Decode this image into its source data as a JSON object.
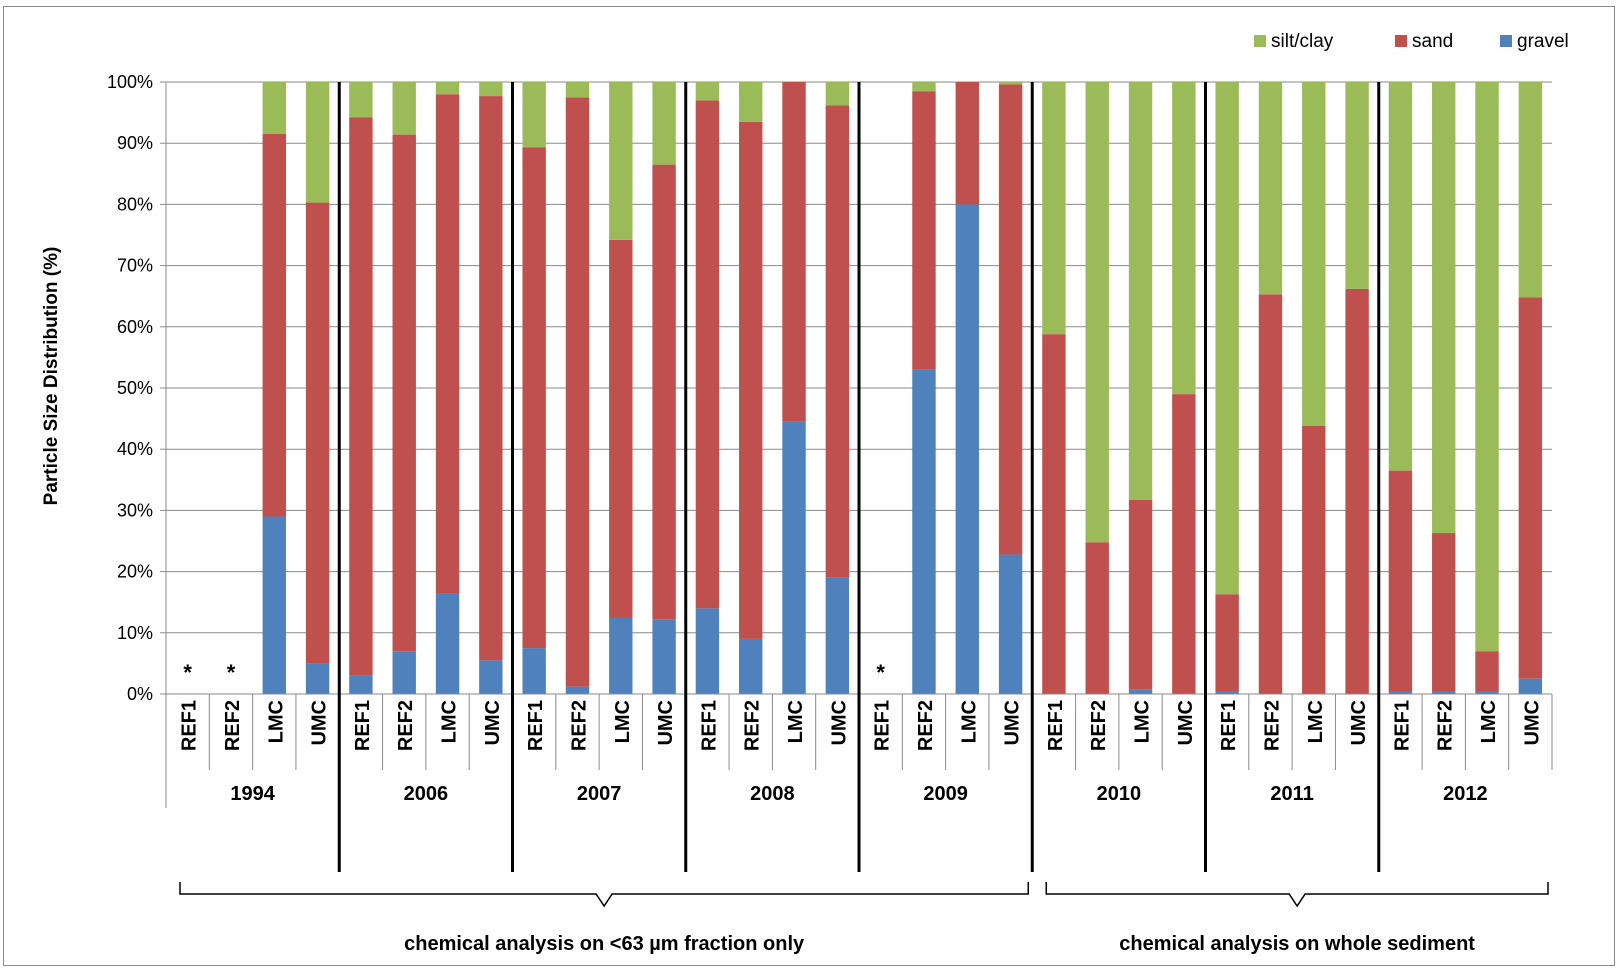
{
  "chart_data": {
    "type": "bar",
    "stacked": true,
    "ylabel": "Particle Size Distribution (%)",
    "xlabel": "",
    "ylim": [
      0,
      100
    ],
    "y_ticks": [
      "0%",
      "10%",
      "20%",
      "30%",
      "40%",
      "50%",
      "60%",
      "70%",
      "80%",
      "90%",
      "100%"
    ],
    "grid": true,
    "legend_position": "top-right",
    "groups": [
      {
        "label": "1994",
        "sites": [
          "REF1",
          "REF2",
          "LMC",
          "UMC"
        ]
      },
      {
        "label": "2006",
        "sites": [
          "REF1",
          "REF2",
          "LMC",
          "UMC"
        ]
      },
      {
        "label": "2007",
        "sites": [
          "REF1",
          "REF2",
          "LMC",
          "UMC"
        ]
      },
      {
        "label": "2008",
        "sites": [
          "REF1",
          "REF2",
          "LMC",
          "UMC"
        ]
      },
      {
        "label": "2009",
        "sites": [
          "REF1",
          "REF2",
          "LMC",
          "UMC"
        ]
      },
      {
        "label": "2010",
        "sites": [
          "REF1",
          "REF2",
          "LMC",
          "UMC"
        ]
      },
      {
        "label": "2011",
        "sites": [
          "REF1",
          "REF2",
          "LMC",
          "UMC"
        ]
      },
      {
        "label": "2012",
        "sites": [
          "REF1",
          "REF2",
          "LMC",
          "UMC"
        ]
      }
    ],
    "series": [
      {
        "name": "gravel",
        "color": "#4f81bd",
        "values": [
          null,
          null,
          29,
          5,
          3,
          7,
          16.5,
          5.5,
          7.5,
          1.2,
          12.5,
          12.2,
          14,
          9,
          44.5,
          19,
          null,
          53,
          80,
          22.8,
          0,
          0,
          0.7,
          0,
          0.4,
          0,
          0,
          0,
          0.4,
          0.4,
          0.4,
          2.5
        ]
      },
      {
        "name": "sand",
        "color": "#c0504d",
        "values": [
          null,
          null,
          62.5,
          75.3,
          91.2,
          84.4,
          81.5,
          92.2,
          81.8,
          96.3,
          61.7,
          74.3,
          83,
          84.5,
          55.5,
          77.2,
          null,
          45.5,
          20,
          76.8,
          58.8,
          24.8,
          31,
          49,
          15.9,
          65.3,
          43.8,
          66.2,
          36.1,
          25.9,
          6.6,
          62.3
        ]
      },
      {
        "name": "silt/clay",
        "color": "#9bbb59",
        "values": [
          null,
          null,
          8.5,
          19.7,
          5.8,
          8.6,
          2,
          2.3,
          10.7,
          2.5,
          25.8,
          13.5,
          3,
          6.5,
          0,
          3.8,
          null,
          1.5,
          0,
          0.4,
          41.2,
          75.2,
          68.3,
          51,
          83.7,
          34.7,
          56.2,
          33.8,
          63.5,
          73.7,
          93,
          35.2
        ]
      }
    ],
    "missing_marker": "*",
    "brackets": [
      {
        "label": "chemical analysis on <63 µm fraction only",
        "from_group": 0,
        "to_group": 4
      },
      {
        "label": "chemical analysis on whole sediment",
        "from_group": 5,
        "to_group": 7
      }
    ]
  }
}
